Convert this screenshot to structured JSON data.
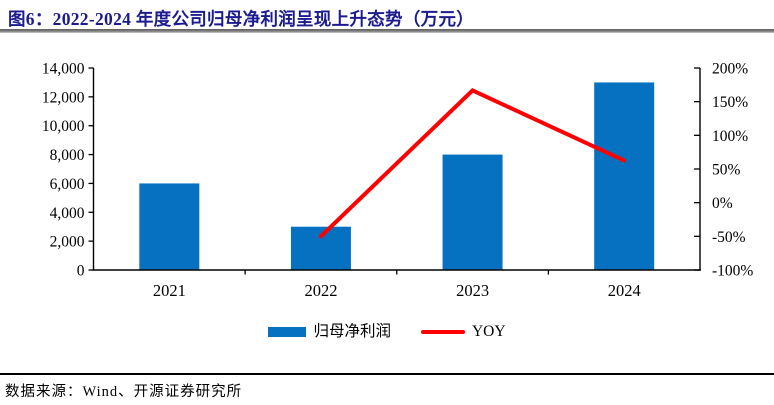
{
  "title": "图6：2022-2024 年度公司归母净利润呈现上升态势（万元）",
  "source": "数据来源：Wind、开源证券研究所",
  "colors": {
    "bar": "#0771C1",
    "line": "#FE0000",
    "title_text": "#1B1B8F",
    "axis": "#000000"
  },
  "legend": [
    {
      "label": "归母净利润",
      "type": "bar"
    },
    {
      "label": "YOY",
      "type": "line"
    }
  ],
  "chart_data": {
    "type": "bar+line",
    "title": "2022-2024 年度公司归母净利润呈现上升态势（万元）",
    "categories": [
      "2021",
      "2022",
      "2023",
      "2024"
    ],
    "series": [
      {
        "name": "归母净利润",
        "type": "bar",
        "axis": "left",
        "values": [
          6000,
          3000,
          8000,
          13000
        ]
      },
      {
        "name": "YOY",
        "type": "line",
        "axis": "right",
        "values": [
          null,
          -50,
          166.7,
          62.5
        ]
      }
    ],
    "left_axis": {
      "min": 0,
      "max": 14000,
      "step": 2000,
      "tick_labels": [
        "0",
        "2,000",
        "4,000",
        "6,000",
        "8,000",
        "10,000",
        "12,000",
        "14,000"
      ]
    },
    "right_axis": {
      "min": -100,
      "max": 200,
      "step": 50,
      "tick_labels": [
        "-100%",
        "-50%",
        "0%",
        "50%",
        "100%",
        "150%",
        "200%"
      ]
    },
    "grid": false,
    "legend_position": "bottom"
  }
}
